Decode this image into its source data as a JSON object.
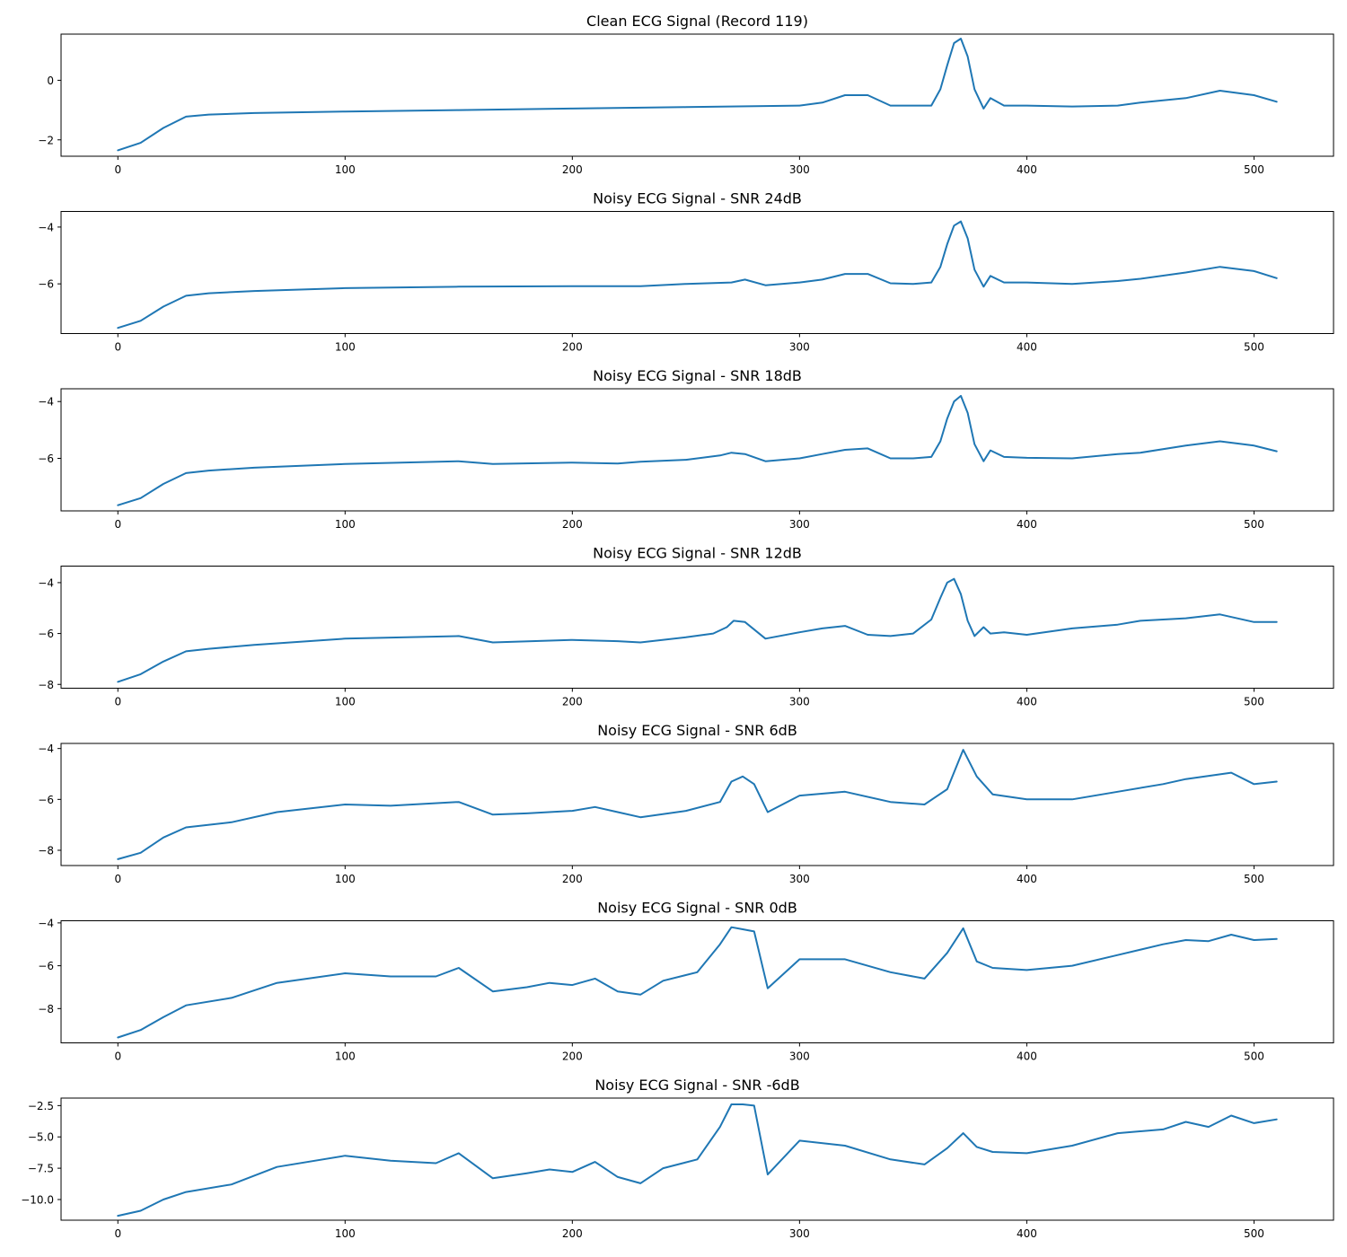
{
  "chart_data": [
    {
      "type": "line",
      "title": "Clean ECG Signal (Record 119)",
      "x_ticks": [
        0,
        100,
        200,
        300,
        400,
        500
      ],
      "y_ticks": [
        0,
        -2
      ],
      "xlim": [
        -25,
        535
      ],
      "ylim": [
        -2.55,
        1.55
      ],
      "series": [
        {
          "x": [
            0,
            10,
            20,
            30,
            40,
            60,
            100,
            150,
            200,
            250,
            300,
            310,
            320,
            330,
            340,
            350,
            358,
            362,
            365,
            368,
            371,
            374,
            377,
            381,
            384,
            390,
            400,
            420,
            440,
            450,
            470,
            485,
            500,
            510
          ],
          "y": [
            -2.35,
            -2.1,
            -1.6,
            -1.22,
            -1.15,
            -1.1,
            -1.05,
            -1.0,
            -0.95,
            -0.9,
            -0.85,
            -0.75,
            -0.5,
            -0.5,
            -0.85,
            -0.85,
            -0.85,
            -0.3,
            0.5,
            1.25,
            1.4,
            0.8,
            -0.3,
            -0.95,
            -0.6,
            -0.85,
            -0.85,
            -0.88,
            -0.85,
            -0.75,
            -0.6,
            -0.35,
            -0.5,
            -0.72
          ]
        }
      ]
    },
    {
      "type": "line",
      "title": "Noisy ECG Signal - SNR 24dB",
      "x_ticks": [
        0,
        100,
        200,
        300,
        400,
        500
      ],
      "y_ticks": [
        -4,
        -6
      ],
      "xlim": [
        -25,
        535
      ],
      "ylim": [
        -7.75,
        -3.45
      ],
      "series": [
        {
          "x": [
            0,
            10,
            20,
            30,
            40,
            60,
            100,
            150,
            200,
            230,
            250,
            270,
            276,
            285,
            300,
            310,
            320,
            330,
            340,
            350,
            358,
            362,
            365,
            368,
            371,
            374,
            377,
            381,
            384,
            390,
            400,
            420,
            440,
            450,
            470,
            485,
            500,
            510
          ],
          "y": [
            -7.55,
            -7.3,
            -6.8,
            -6.42,
            -6.33,
            -6.25,
            -6.15,
            -6.1,
            -6.08,
            -6.08,
            -6.0,
            -5.95,
            -5.85,
            -6.05,
            -5.95,
            -5.85,
            -5.65,
            -5.65,
            -5.98,
            -6.0,
            -5.95,
            -5.4,
            -4.6,
            -3.95,
            -3.8,
            -4.4,
            -5.5,
            -6.1,
            -5.72,
            -5.95,
            -5.95,
            -6.0,
            -5.9,
            -5.82,
            -5.6,
            -5.4,
            -5.55,
            -5.8
          ]
        }
      ]
    },
    {
      "type": "line",
      "title": "Noisy ECG Signal - SNR 18dB",
      "x_ticks": [
        0,
        100,
        200,
        300,
        400,
        500
      ],
      "y_ticks": [
        -4,
        -6
      ],
      "xlim": [
        -25,
        535
      ],
      "ylim": [
        -7.85,
        -3.55
      ],
      "series": [
        {
          "x": [
            0,
            10,
            20,
            30,
            40,
            60,
            100,
            150,
            165,
            200,
            220,
            230,
            250,
            265,
            270,
            276,
            285,
            300,
            310,
            320,
            330,
            340,
            350,
            358,
            362,
            365,
            368,
            371,
            374,
            377,
            381,
            384,
            390,
            400,
            420,
            440,
            450,
            470,
            485,
            500,
            510
          ],
          "y": [
            -7.65,
            -7.4,
            -6.9,
            -6.52,
            -6.43,
            -6.33,
            -6.2,
            -6.1,
            -6.2,
            -6.15,
            -6.18,
            -6.12,
            -6.05,
            -5.9,
            -5.8,
            -5.85,
            -6.1,
            -6.0,
            -5.85,
            -5.7,
            -5.65,
            -6.0,
            -6.0,
            -5.95,
            -5.4,
            -4.6,
            -4.0,
            -3.8,
            -4.4,
            -5.5,
            -6.1,
            -5.72,
            -5.95,
            -5.98,
            -6.0,
            -5.85,
            -5.8,
            -5.55,
            -5.4,
            -5.55,
            -5.75
          ]
        }
      ]
    },
    {
      "type": "line",
      "title": "Noisy ECG Signal - SNR 12dB",
      "x_ticks": [
        0,
        100,
        200,
        300,
        400,
        500
      ],
      "y_ticks": [
        -4,
        -6,
        -8
      ],
      "xlim": [
        -25,
        535
      ],
      "ylim": [
        -8.15,
        -3.35
      ],
      "series": [
        {
          "x": [
            0,
            10,
            20,
            30,
            40,
            60,
            100,
            150,
            165,
            200,
            220,
            230,
            250,
            262,
            268,
            271,
            276,
            285,
            300,
            310,
            320,
            330,
            340,
            350,
            358,
            362,
            365,
            368,
            371,
            374,
            377,
            381,
            384,
            390,
            400,
            420,
            440,
            450,
            470,
            485,
            500,
            510
          ],
          "y": [
            -7.9,
            -7.6,
            -7.1,
            -6.7,
            -6.6,
            -6.45,
            -6.2,
            -6.1,
            -6.35,
            -6.25,
            -6.3,
            -6.35,
            -6.15,
            -6.0,
            -5.75,
            -5.5,
            -5.55,
            -6.2,
            -5.95,
            -5.8,
            -5.7,
            -6.05,
            -6.1,
            -6.0,
            -5.45,
            -4.6,
            -4.0,
            -3.85,
            -4.45,
            -5.5,
            -6.1,
            -5.75,
            -6.0,
            -5.95,
            -6.05,
            -5.8,
            -5.65,
            -5.5,
            -5.4,
            -5.25,
            -5.55,
            -5.55
          ]
        }
      ]
    },
    {
      "type": "line",
      "title": "Noisy ECG Signal - SNR 6dB",
      "x_ticks": [
        0,
        100,
        200,
        300,
        400,
        500
      ],
      "y_ticks": [
        -4,
        -6,
        -8
      ],
      "xlim": [
        -25,
        535
      ],
      "ylim": [
        -8.6,
        -3.8
      ],
      "series": [
        {
          "x": [
            0,
            10,
            20,
            30,
            50,
            70,
            100,
            120,
            150,
            165,
            180,
            200,
            210,
            220,
            230,
            250,
            265,
            270,
            275,
            280,
            286,
            300,
            320,
            340,
            355,
            365,
            372,
            378,
            385,
            400,
            420,
            440,
            460,
            470,
            490,
            500,
            510
          ],
          "y": [
            -8.35,
            -8.1,
            -7.5,
            -7.1,
            -6.9,
            -6.5,
            -6.2,
            -6.25,
            -6.1,
            -6.6,
            -6.55,
            -6.45,
            -6.3,
            -6.5,
            -6.7,
            -6.45,
            -6.1,
            -5.3,
            -5.1,
            -5.4,
            -6.5,
            -5.85,
            -5.7,
            -6.1,
            -6.2,
            -5.6,
            -4.05,
            -5.1,
            -5.8,
            -6.0,
            -6.0,
            -5.7,
            -5.4,
            -5.2,
            -4.95,
            -5.4,
            -5.3
          ]
        }
      ]
    },
    {
      "type": "line",
      "title": "Noisy ECG Signal - SNR 0dB",
      "x_ticks": [
        0,
        100,
        200,
        300,
        400,
        500
      ],
      "y_ticks": [
        -4,
        -6,
        -8
      ],
      "xlim": [
        -25,
        535
      ],
      "ylim": [
        -9.6,
        -3.9
      ],
      "series": [
        {
          "x": [
            0,
            10,
            20,
            30,
            50,
            70,
            100,
            120,
            140,
            150,
            165,
            180,
            190,
            200,
            210,
            220,
            230,
            240,
            255,
            265,
            270,
            275,
            280,
            286,
            300,
            320,
            340,
            355,
            365,
            372,
            378,
            385,
            400,
            420,
            440,
            460,
            470,
            480,
            490,
            500,
            510
          ],
          "y": [
            -9.35,
            -9.0,
            -8.4,
            -7.85,
            -7.5,
            -6.8,
            -6.35,
            -6.5,
            -6.5,
            -6.1,
            -7.2,
            -7.0,
            -6.8,
            -6.9,
            -6.6,
            -7.2,
            -7.35,
            -6.7,
            -6.3,
            -5.0,
            -4.2,
            -4.3,
            -4.4,
            -7.05,
            -5.7,
            -5.7,
            -6.3,
            -6.6,
            -5.4,
            -4.25,
            -5.8,
            -6.1,
            -6.2,
            -6.0,
            -5.5,
            -5.0,
            -4.8,
            -4.85,
            -4.55,
            -4.8,
            -4.75
          ]
        }
      ]
    },
    {
      "type": "line",
      "title": "Noisy ECG Signal - SNR -6dB",
      "x_ticks": [
        0,
        100,
        200,
        300,
        400,
        500
      ],
      "y_ticks": [
        -2.5,
        -5.0,
        -7.5,
        -10.0
      ],
      "xlim": [
        -25,
        535
      ],
      "ylim": [
        -11.65,
        -1.9
      ],
      "series": [
        {
          "x": [
            0,
            10,
            20,
            30,
            50,
            70,
            100,
            120,
            140,
            150,
            165,
            180,
            190,
            200,
            210,
            220,
            230,
            240,
            255,
            265,
            270,
            275,
            280,
            286,
            300,
            320,
            340,
            355,
            365,
            372,
            378,
            385,
            400,
            420,
            440,
            460,
            470,
            480,
            490,
            500,
            510
          ],
          "y": [
            -11.3,
            -10.9,
            -10.0,
            -9.4,
            -8.8,
            -7.4,
            -6.5,
            -6.9,
            -7.1,
            -6.3,
            -8.3,
            -7.9,
            -7.6,
            -7.8,
            -7.0,
            -8.2,
            -8.7,
            -7.5,
            -6.8,
            -4.2,
            -2.4,
            -2.4,
            -2.5,
            -8.0,
            -5.3,
            -5.7,
            -6.8,
            -7.2,
            -5.9,
            -4.7,
            -5.8,
            -6.2,
            -6.3,
            -5.7,
            -4.7,
            -4.4,
            -3.8,
            -4.2,
            -3.3,
            -3.9,
            -3.6
          ]
        }
      ]
    }
  ]
}
